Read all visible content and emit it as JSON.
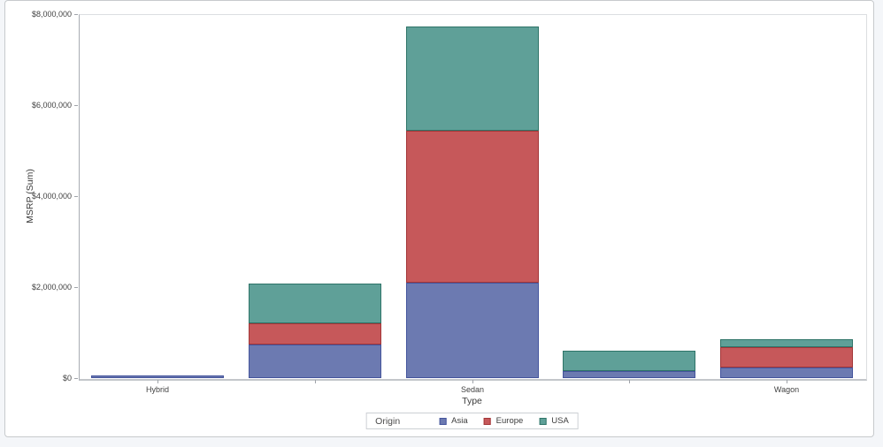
{
  "page": {
    "background": "#f4f6f9",
    "panel_background": "#ffffff",
    "panel_border": "#c7cacd"
  },
  "chart_data": {
    "type": "bar",
    "stacked": true,
    "orientation": "vertical",
    "title": "",
    "xlabel": "Type",
    "ylabel": "MSRP (Sum)",
    "ylim": [
      0,
      8000000
    ],
    "y_tick_values": [
      0,
      2000000,
      4000000,
      6000000,
      8000000
    ],
    "y_tick_labels": [
      "$0",
      "$2,000,000",
      "$4,000,000",
      "$6,000,000",
      "$8,000,000"
    ],
    "categories": [
      "Hybrid",
      "",
      "Sedan",
      "",
      "Wagon"
    ],
    "grid": false,
    "series": [
      {
        "name": "Asia",
        "fill": "#6C7AB1",
        "border": "#44549C",
        "values": [
          60000,
          730000,
          2100000,
          155000,
          235000
        ]
      },
      {
        "name": "Europe",
        "fill": "#C6585A",
        "border": "#A33638",
        "values": [
          0,
          465000,
          3340000,
          0,
          445000
        ]
      },
      {
        "name": "USA",
        "fill": "#5FA098",
        "border": "#2F7468",
        "values": [
          0,
          880000,
          2290000,
          450000,
          175000
        ]
      }
    ],
    "legend": {
      "title": "Origin",
      "position": "bottom-center",
      "entries": [
        "Asia",
        "Europe",
        "USA"
      ]
    }
  }
}
